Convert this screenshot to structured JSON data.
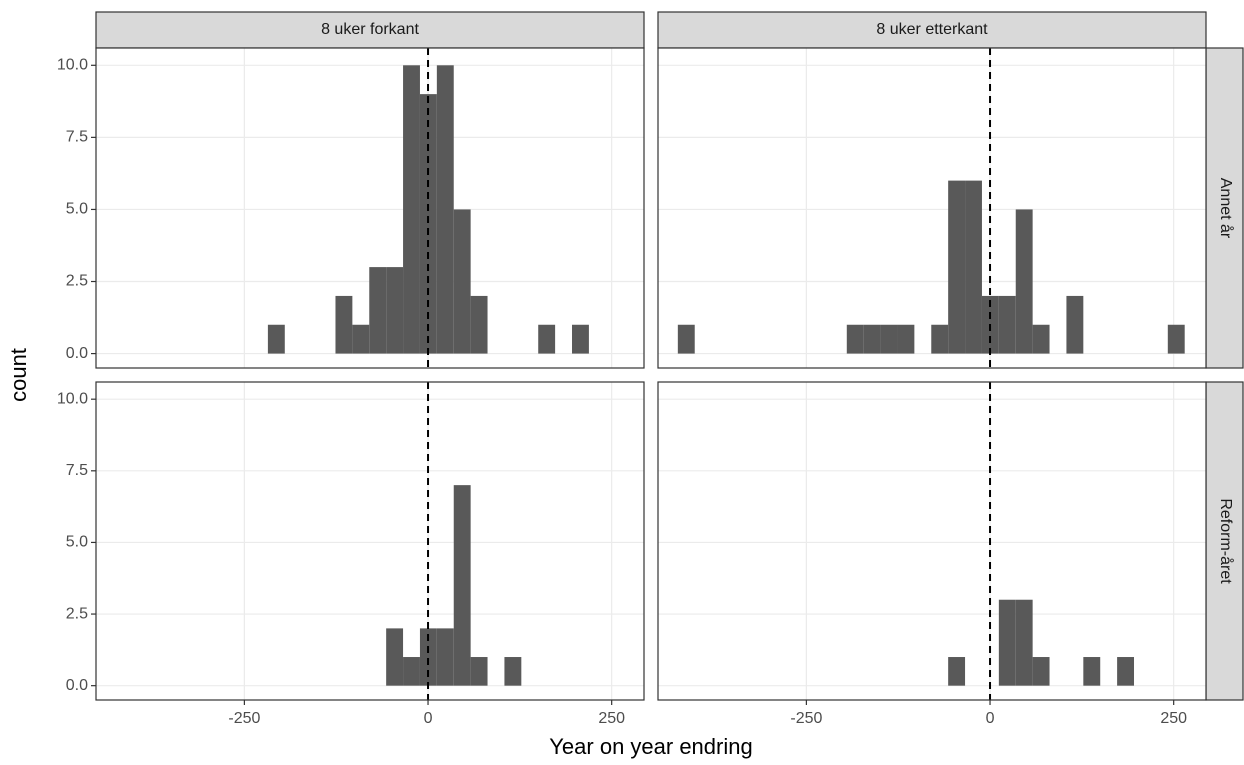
{
  "chart_data": {
    "type": "histogram",
    "x_label": "Year on year endring",
    "y_label": "count",
    "facet_cols": [
      "8 uker forkant",
      "8 uker etterkant"
    ],
    "facet_rows": [
      "Annet år",
      "Reform-året"
    ],
    "bins": [
      -448,
      -425,
      -402,
      -379,
      -356,
      -333,
      -310,
      -287,
      -264,
      -241,
      -218,
      -195,
      -172,
      -149,
      -126,
      -103,
      -80,
      -57,
      -34,
      -11,
      12,
      35,
      58,
      81,
      104,
      127,
      150,
      173,
      196,
      219,
      242,
      265,
      288
    ],
    "counts": [
      [
        [
          0,
          0,
          0,
          0,
          0,
          0,
          0,
          0,
          0,
          0,
          1,
          0,
          0,
          0,
          2,
          1,
          3,
          3,
          10,
          9,
          10,
          5,
          2,
          0,
          0,
          0,
          1,
          0,
          1,
          0,
          0,
          0
        ],
        [
          0,
          1,
          0,
          0,
          0,
          0,
          0,
          0,
          0,
          0,
          0,
          1,
          1,
          1,
          1,
          0,
          1,
          6,
          6,
          2,
          2,
          5,
          1,
          0,
          2,
          0,
          0,
          0,
          0,
          0,
          1,
          0
        ]
      ],
      [
        [
          0,
          0,
          0,
          0,
          0,
          0,
          0,
          0,
          0,
          0,
          0,
          0,
          0,
          0,
          0,
          0,
          0,
          2,
          1,
          2,
          2,
          7,
          1,
          0,
          1,
          0,
          0,
          0,
          0,
          0,
          0,
          0
        ],
        [
          0,
          0,
          0,
          0,
          0,
          0,
          0,
          0,
          0,
          0,
          0,
          0,
          0,
          0,
          0,
          0,
          0,
          1,
          0,
          0,
          3,
          3,
          1,
          0,
          0,
          1,
          0,
          1,
          0,
          0,
          0,
          0
        ]
      ]
    ],
    "color": "#595959",
    "reference_line": 0,
    "xlim": [
      -452,
      294
    ],
    "ylim": [
      -0.5,
      10.6
    ],
    "xticks": [
      -250,
      0,
      250
    ],
    "yticks": [
      {
        "value": 0,
        "label": "0.0"
      },
      {
        "value": 2.5,
        "label": "2.5"
      },
      {
        "value": 5,
        "label": "5.0"
      },
      {
        "value": 7.5,
        "label": "7.5"
      },
      {
        "value": 10,
        "label": "10.0"
      }
    ],
    "grid": true
  }
}
